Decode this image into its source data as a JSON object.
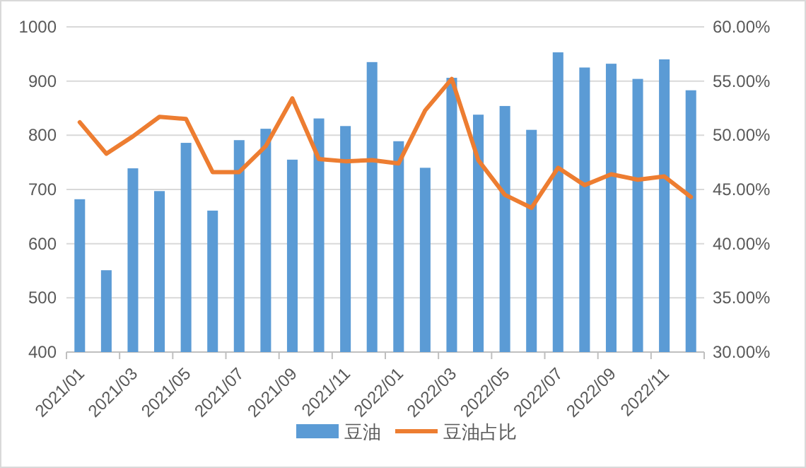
{
  "chart_data": {
    "type": "bar",
    "categories": [
      "2021/01",
      null,
      "2021/03",
      null,
      "2021/05",
      null,
      "2021/07",
      null,
      "2021/09",
      null,
      "2021/11",
      null,
      "2022/01",
      null,
      "2022/03",
      null,
      "2022/05",
      null,
      "2022/07",
      null,
      "2022/09",
      null,
      "2022/11",
      null
    ],
    "series": [
      {
        "name": "豆油",
        "color": "#5b9bd5",
        "values": [
          682,
          551,
          739,
          697,
          786,
          661,
          791,
          812,
          755,
          831,
          817,
          935,
          789,
          740,
          906,
          838,
          854,
          810,
          953,
          925,
          932,
          904,
          940,
          883
        ]
      },
      {
        "name": "豆油占比",
        "type": "line",
        "axis": "y2",
        "color": "#ed7d31",
        "values": [
          51.2,
          48.3,
          49.9,
          51.7,
          51.5,
          46.6,
          46.6,
          49.0,
          53.4,
          47.8,
          47.6,
          47.7,
          47.4,
          52.3,
          55.2,
          47.7,
          44.5,
          43.3,
          47.0,
          45.4,
          46.4,
          45.9,
          46.2,
          44.3
        ]
      }
    ],
    "ylim": [
      400,
      1000
    ],
    "yticks": [
      400,
      500,
      600,
      700,
      800,
      900,
      1000
    ],
    "y2lim": [
      30,
      60
    ],
    "y2ticks": [
      {
        "value": 30,
        "label": "30.00%"
      },
      {
        "value": 35,
        "label": "35.00%"
      },
      {
        "value": 40,
        "label": "40.00%"
      },
      {
        "value": 45,
        "label": "45.00%"
      },
      {
        "value": 50,
        "label": "50.00%"
      },
      {
        "value": 55,
        "label": "55.00%"
      },
      {
        "value": 60,
        "label": "60.00%"
      }
    ],
    "grid": "y",
    "legend": "bottom",
    "marker": "none",
    "line_style": "solid"
  }
}
